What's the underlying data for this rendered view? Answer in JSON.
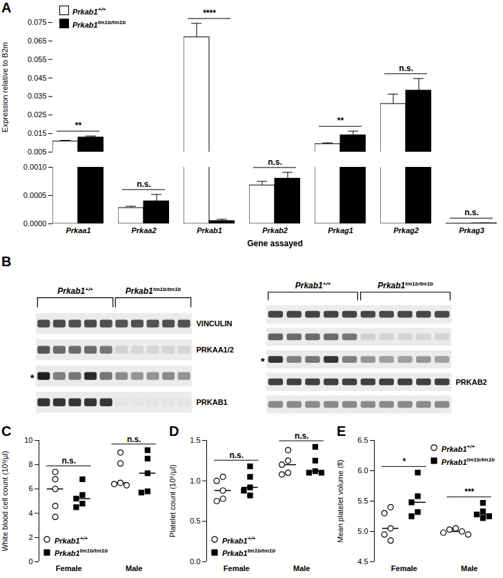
{
  "chart_data": [
    {
      "type": "bar",
      "panel_label": "A",
      "categories": [
        "Prkaa1",
        "Prkaa2",
        "Prkab1",
        "Prkab2",
        "Prkag1",
        "Prkag2",
        "Prkag3"
      ],
      "x_label": "Gene assayed",
      "y_label": "Expression relative to B2m",
      "ylim": [
        0,
        0.075
      ],
      "y_break": [
        0.001,
        0.005
      ],
      "yticks": [
        {
          "value": 0,
          "label": "0.0000"
        },
        0.0005,
        {
          "value": 0.001,
          "label": "0.0010"
        },
        0.005,
        0.015,
        0.025,
        0.035,
        0.045,
        0.055,
        0.065,
        0.075
      ],
      "legend": "top-left",
      "series": [
        {
          "name": "Prkab1+/+",
          "color": "#ffffff",
          "values": [
            0.0108,
            0.00028,
            0.067,
            0.00068,
            0.0093,
            0.031,
            5e-06
          ],
          "error": [
            0.0005,
            3e-05,
            0.0075,
            7e-05,
            0.0007,
            0.0053,
            3e-06
          ]
        },
        {
          "name": "Prkab1tm1b/tm1b",
          "color": "#000000",
          "values": [
            0.0129,
            0.0004,
            5e-05,
            0.0008,
            0.0141,
            0.0382,
            1e-05
          ],
          "error": [
            0.0008,
            0.00012,
            3e-05,
            0.00011,
            0.0022,
            0.0065,
            5e-06
          ]
        }
      ],
      "significance": [
        "**",
        "n.s.",
        "****",
        "n.s.",
        "**",
        "n.s.",
        "n.s."
      ]
    },
    {
      "type": "blot",
      "panel_label": "B",
      "blots": [
        {
          "lanes": [
            "Prkab1+/+",
            "Prkab1+/+",
            "Prkab1+/+",
            "Prkab1+/+",
            "Prkab1+/+",
            "Prkab1tm1b/tm1b",
            "Prkab1tm1b/tm1b",
            "Prkab1tm1b/tm1b",
            "Prkab1tm1b/tm1b",
            "Prkab1tm1b/tm1b"
          ],
          "bands": [
            {
              "label": "VINCULIN",
              "intensity": [
                0.75,
                0.75,
                0.72,
                0.75,
                0.73,
                0.7,
                0.72,
                0.7,
                0.72,
                0.72
              ]
            },
            {
              "label": "PRKAA1/2",
              "intensity": [
                0.7,
                0.6,
                0.6,
                0.6,
                0.55,
                0.12,
                0.1,
                0.1,
                0.1,
                0.1
              ]
            },
            {
              "label": null,
              "mark": "*",
              "intensity": [
                0.95,
                0.5,
                0.55,
                0.9,
                0.55,
                0.45,
                0.4,
                0.4,
                0.45,
                0.4
              ]
            },
            {
              "label": "PRKAB1",
              "intensity": [
                0.85,
                0.85,
                0.85,
                0.85,
                0.85,
                0.03,
                0.03,
                0.03,
                0.03,
                0.03
              ]
            }
          ]
        },
        {
          "lanes": [
            "Prkab1+/+",
            "Prkab1+/+",
            "Prkab1+/+",
            "Prkab1+/+",
            "Prkab1+/+",
            "Prkab1tm1b/tm1b",
            "Prkab1tm1b/tm1b",
            "Prkab1tm1b/tm1b",
            "Prkab1tm1b/tm1b",
            "Prkab1tm1b/tm1b"
          ],
          "bands": [
            {
              "label": null,
              "intensity": [
                0.78,
                0.78,
                0.78,
                0.78,
                0.78,
                0.76,
                0.76,
                0.76,
                0.76,
                0.76
              ]
            },
            {
              "label": null,
              "intensity": [
                0.65,
                0.6,
                0.6,
                0.6,
                0.55,
                0.12,
                0.1,
                0.1,
                0.1,
                0.1
              ]
            },
            {
              "label": null,
              "mark": "*",
              "intensity": [
                0.85,
                0.5,
                0.55,
                0.85,
                0.5,
                0.4,
                0.35,
                0.35,
                0.4,
                0.35
              ]
            },
            {
              "label": "PRKAB2",
              "intensity": [
                0.8,
                0.8,
                0.8,
                0.8,
                0.8,
                0.8,
                0.8,
                0.8,
                0.8,
                0.8
              ]
            },
            {
              "label": null,
              "intensity": [
                0.45,
                0.45,
                0.45,
                0.45,
                0.45,
                0.45,
                0.45,
                0.45,
                0.45,
                0.45
              ]
            }
          ]
        }
      ]
    },
    {
      "type": "scatter",
      "panel_label": "C",
      "categories": [
        "Female",
        "Male"
      ],
      "y_label": "White blood cell count (10³/µl)",
      "ylim": [
        0,
        10
      ],
      "yticks": [
        0,
        2,
        4,
        6,
        8,
        10
      ],
      "legend": "bottom-left",
      "significance": [
        "n.s.",
        "n.s."
      ],
      "series": [
        {
          "name": "Prkab1+/+",
          "marker": "circle",
          "color": "#ffffff",
          "values": [
            [
              7.4,
              6.8,
              6.0,
              4.6,
              3.7
            ],
            [
              9.0,
              8.1,
              6.5,
              6.4,
              6.3
            ]
          ],
          "median": [
            6.0,
            6.5
          ]
        },
        {
          "name": "Prkab1tm1b/tm1b",
          "marker": "square",
          "color": "#000000",
          "values": [
            [
              6.8,
              5.5,
              5.2,
              4.8,
              4.5
            ],
            [
              9.2,
              8.5,
              7.3,
              5.8,
              5.7
            ]
          ],
          "median": [
            5.2,
            7.3
          ]
        }
      ]
    },
    {
      "type": "scatter",
      "panel_label": "D",
      "categories": [
        "Female",
        "Male"
      ],
      "y_label": "Platelet count (10⁶/µl)",
      "ylim": [
        0,
        1.5
      ],
      "yticks": [
        {
          "value": 0,
          "label": "0.0"
        },
        0.5,
        {
          "value": 1,
          "label": "1.0"
        },
        1.5
      ],
      "legend": "bottom-left",
      "significance": [
        "n.s.",
        "n.s."
      ],
      "series": [
        {
          "name": "Prkab1+/+",
          "marker": "circle",
          "color": "#ffffff",
          "values": [
            [
              1.05,
              1.0,
              0.88,
              0.78,
              0.75
            ],
            [
              1.38,
              1.25,
              1.2,
              1.1,
              1.08
            ]
          ],
          "median": [
            0.88,
            1.2
          ]
        },
        {
          "name": "Prkab1tm1b/tm1b",
          "marker": "square",
          "color": "#000000",
          "values": [
            [
              1.18,
              1.05,
              0.92,
              0.88,
              0.82
            ],
            [
              1.42,
              1.25,
              1.12,
              1.1,
              1.1
            ]
          ],
          "median": [
            0.92,
            1.12
          ]
        }
      ]
    },
    {
      "type": "scatter",
      "panel_label": "E",
      "categories": [
        "Female",
        "Male"
      ],
      "y_label": "Mean platelet volume (fl)",
      "ylim": [
        4.5,
        6.5
      ],
      "yticks": [
        4.5,
        {
          "value": 5,
          "label": "5.0"
        },
        5.5,
        {
          "value": 6,
          "label": "6.0"
        },
        6.5
      ],
      "legend": "top-right",
      "significance": [
        "*",
        "***"
      ],
      "series": [
        {
          "name": "Prkab1+/+",
          "marker": "circle",
          "color": "#ffffff",
          "values": [
            [
              5.4,
              5.3,
              5.05,
              4.95,
              4.85
            ],
            [
              5.05,
              5.03,
              5.0,
              4.98,
              4.95
            ]
          ],
          "median": [
            5.05,
            5.0
          ]
        },
        {
          "name": "Prkab1tm1b/tm1b",
          "marker": "square",
          "color": "#000000",
          "values": [
            [
              5.97,
              5.58,
              5.48,
              5.32,
              5.25
            ],
            [
              5.47,
              5.33,
              5.28,
              5.25,
              5.22
            ]
          ],
          "median": [
            5.48,
            5.28
          ]
        }
      ]
    }
  ]
}
